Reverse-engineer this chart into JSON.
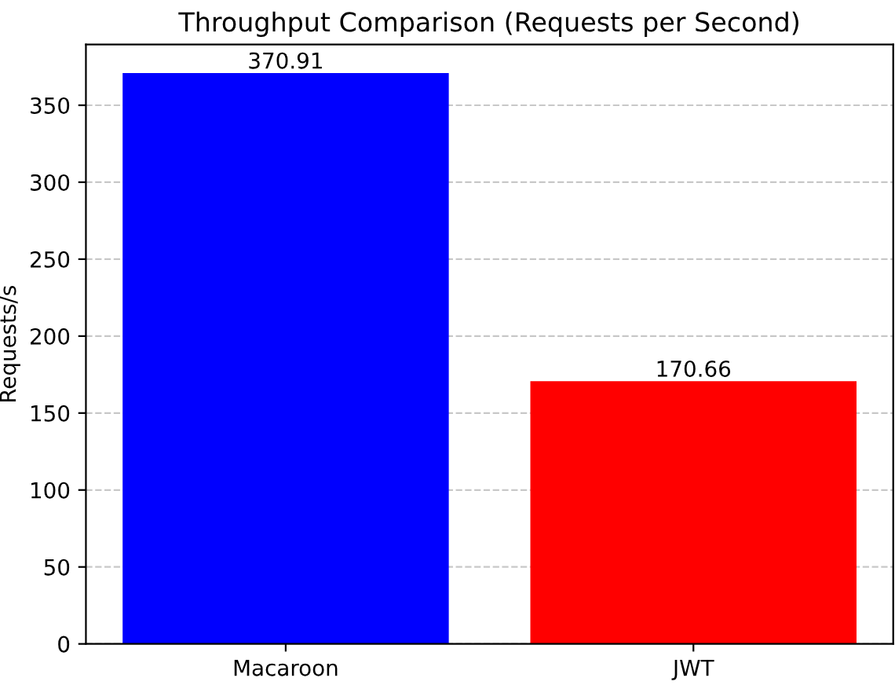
{
  "chart_data": {
    "type": "bar",
    "title": "Throughput Comparison (Requests per Second)",
    "ylabel": "Requests/s",
    "categories": [
      "Macaroon",
      "JWT"
    ],
    "values": [
      370.91,
      170.66
    ],
    "colors": [
      "#0000ff",
      "#ff0000"
    ],
    "data_labels": true,
    "ylim": [
      0,
      389.46
    ],
    "yticks": [
      0,
      50,
      100,
      150,
      200,
      250,
      300,
      350
    ],
    "grid": "y",
    "line_style": "dashed"
  }
}
